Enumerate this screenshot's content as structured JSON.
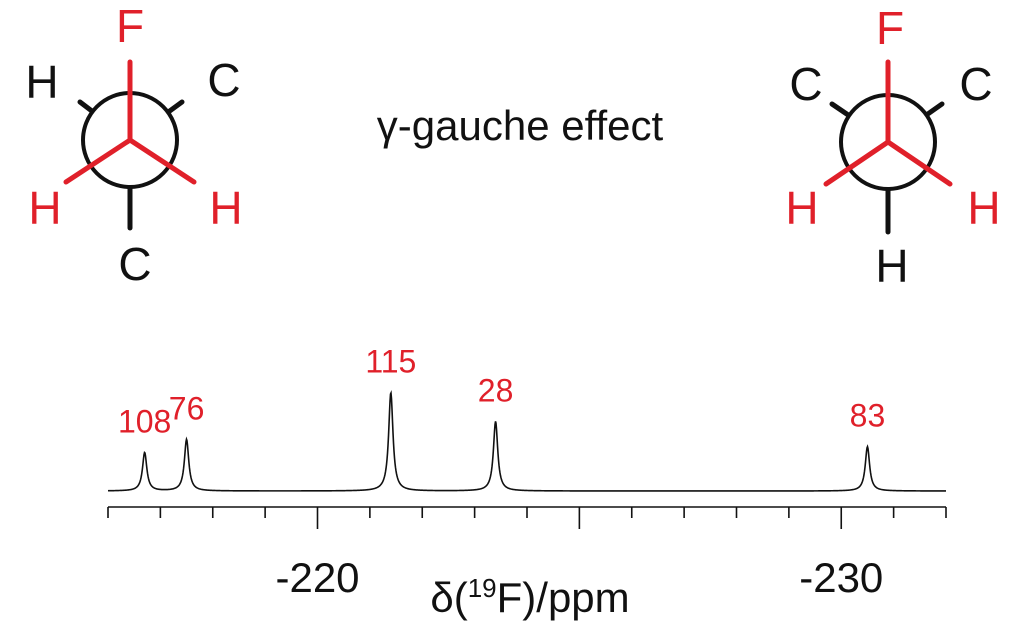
{
  "effect_label": "γ-gauche effect",
  "newman_left": {
    "front_top": "F",
    "front_left": "H",
    "front_right": "H",
    "back_left": "H",
    "back_right": "C",
    "back_bottom": "C"
  },
  "newman_right": {
    "front_top": "F",
    "front_left": "H",
    "front_right": "H",
    "back_left": "C",
    "back_right": "C",
    "back_bottom": "H"
  },
  "colors": {
    "highlight": "#e0202a",
    "ink": "#111111"
  },
  "chart_data": {
    "type": "line",
    "xlabel_prefix": "δ(",
    "xlabel_sup": "19",
    "xlabel_suffix": "F)/ppm",
    "xlim": [
      -216,
      -232
    ],
    "reversed_axis": true,
    "major_ticks": [
      -220,
      -225,
      -230
    ],
    "tick_labels": [
      {
        "value": -220,
        "label": "-220"
      },
      {
        "value": -230,
        "label": "-230"
      }
    ],
    "minor_tick_step": 1,
    "grid": false,
    "baseline_range": [
      -216,
      -232
    ],
    "peaks": [
      {
        "ppm": -216.7,
        "height": 0.32,
        "label": "108"
      },
      {
        "ppm": -217.5,
        "height": 0.43,
        "label": "76"
      },
      {
        "ppm": -221.4,
        "height": 0.82,
        "label": "115"
      },
      {
        "ppm": -223.4,
        "height": 0.58,
        "label": "28"
      },
      {
        "ppm": -230.5,
        "height": 0.37,
        "label": "83"
      }
    ]
  }
}
